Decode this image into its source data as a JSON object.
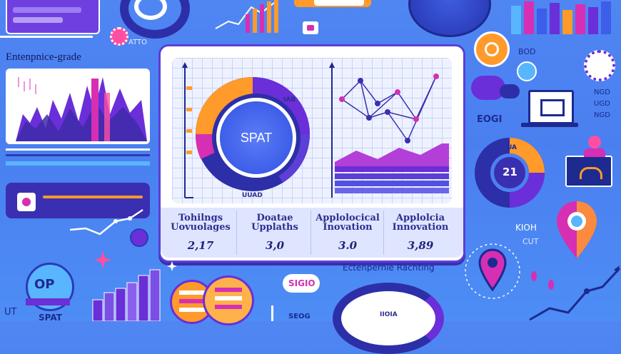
{
  "header": {
    "brand_label": "Entenpnice-grade",
    "small_label_top": "ATTO"
  },
  "center_card": {
    "donut_label": "SPAT",
    "donut_tag_top": "IAB",
    "donut_tag_bottom": "UUAD",
    "stats": [
      {
        "label": "Tohilngs\nUovuolages",
        "value": "2,17"
      },
      {
        "label": "Doatae\nUpplaths",
        "value": "3,0"
      },
      {
        "label": "Applolocical\nInovation",
        "value": "3.0"
      },
      {
        "label": "Applolcia\nInnovation",
        "value": "3,89"
      }
    ]
  },
  "right_panel": {
    "gauge_value": "21",
    "gauge_tag": "UA",
    "label_kioh": "KIOH",
    "label_cut": "CUT",
    "label_eogi": "EOGI",
    "labels_list": [
      "NGD",
      "UGD",
      "NGD"
    ],
    "label_bod": "BOD"
  },
  "bottom": {
    "enterprise_label": "Ectenpernie Rachting",
    "bubble_label": "SIGIO",
    "op_label": "OP",
    "ut_label": "UT",
    "spat_label": "SPAT",
    "seog_label": "SEOG",
    "ring_label": "IIOIA"
  },
  "colors": {
    "background": "#4f86f2",
    "accent_purple": "#6a2fd8",
    "accent_magenta": "#d62fb3",
    "accent_orange": "#ff9a2b",
    "card_border": "#5b3fd6"
  }
}
